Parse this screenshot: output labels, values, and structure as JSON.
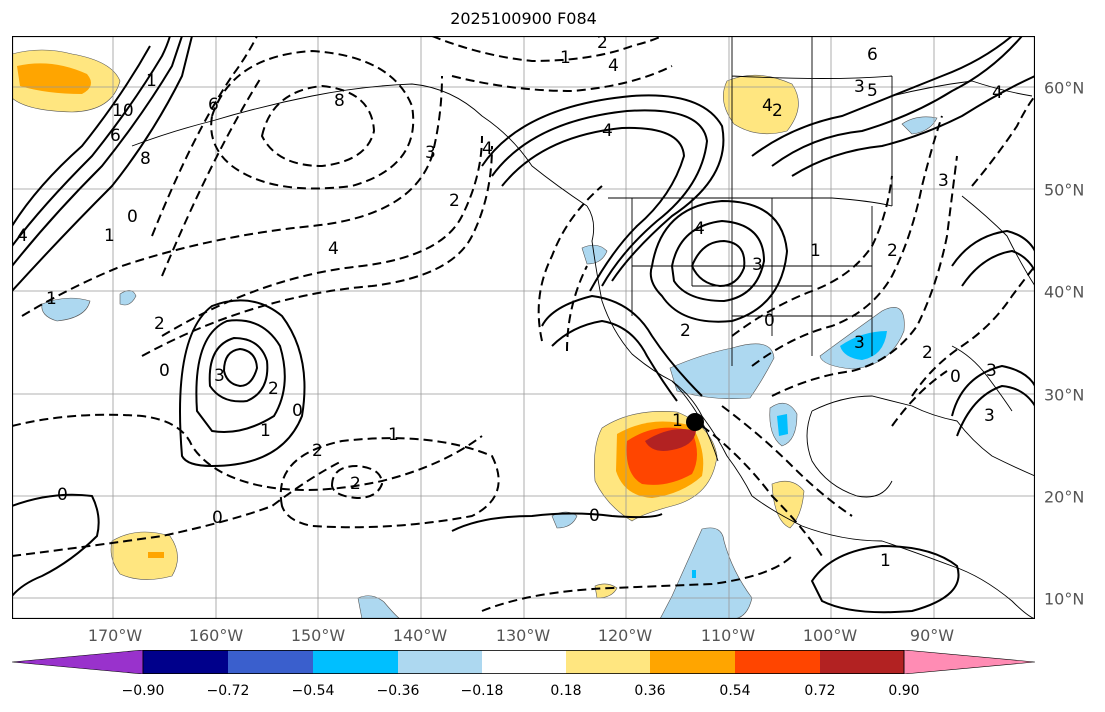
{
  "title": "2025100900 F084",
  "lon_labels": [
    "170°W",
    "160°W",
    "150°W",
    "140°W",
    "130°W",
    "120°W",
    "110°W",
    "100°W",
    "90°W"
  ],
  "lat_labels": [
    "60°N",
    "50°N",
    "40°N",
    "30°N",
    "20°N",
    "10°N"
  ],
  "colorbar": {
    "ticks": [
      "−0.90",
      "−0.72",
      "−0.54",
      "−0.36",
      "−0.18",
      "0.18",
      "0.36",
      "0.54",
      "0.72",
      "0.90"
    ],
    "colors": [
      "#9932cc",
      "#00008b",
      "#3a5fcd",
      "#00bfff",
      "#add8f0",
      "#ffffff",
      "#ffe680",
      "#ffa500",
      "#ff4500",
      "#b22222",
      "#ff8cb4"
    ]
  },
  "contour_labels": [
    "2",
    "1",
    "8",
    "10",
    "6",
    "1",
    "6",
    "8",
    "3",
    "2",
    "4",
    "0",
    "1",
    "1",
    "4",
    "0",
    "2",
    "3",
    "4",
    "6",
    "5",
    "2",
    "3",
    "4",
    "4",
    "4",
    "3",
    "2",
    "1",
    "0",
    "2",
    "3",
    "2",
    "3",
    "3",
    "0",
    "2",
    "1",
    "0",
    "1",
    "2",
    "0",
    "2",
    "0",
    "4",
    "0",
    "1",
    "1",
    "3",
    "4"
  ],
  "marker": "storm-center-dot"
}
